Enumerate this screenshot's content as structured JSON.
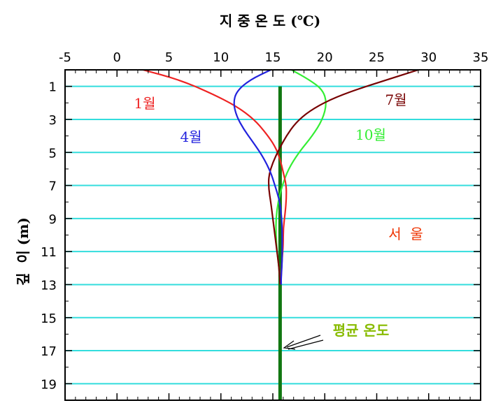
{
  "chart_data": {
    "type": "line",
    "title": "지 중 온 도 (℃)",
    "xlabel": "지 중 온 도 (℃)",
    "ylabel": "깊  이 (m)",
    "xlim": [
      -5,
      35
    ],
    "ylim": [
      0,
      20
    ],
    "x_ticks": [
      "-5",
      "0",
      "5",
      "10",
      "15",
      "20",
      "25",
      "30",
      "35"
    ],
    "y_ticks": [
      "1",
      "3",
      "5",
      "7",
      "9",
      "11",
      "13",
      "15",
      "17",
      "19"
    ],
    "grid": "horizontal",
    "location_label": "서  울",
    "annotation": "평균 온도",
    "colors": {
      "grid": "#33dddd",
      "jan": "#ee2222",
      "apr": "#2222dd",
      "jul": "#770000",
      "oct": "#33ee33",
      "mean": "#117711",
      "annotation": "#88bb00",
      "location": "#ee3300"
    },
    "series": [
      {
        "name": "1월",
        "points": [
          [
            2.5,
            0
          ],
          [
            6,
            0.6
          ],
          [
            9,
            1.4
          ],
          [
            11.5,
            2.2
          ],
          [
            13.2,
            3.0
          ],
          [
            14.3,
            3.8
          ],
          [
            15.2,
            4.6
          ],
          [
            15.7,
            5.4
          ],
          [
            16.0,
            6.2
          ],
          [
            16.3,
            7.0
          ],
          [
            16.3,
            7.8
          ],
          [
            16.2,
            8.6
          ],
          [
            16.0,
            9.6
          ],
          [
            16.0,
            10.6
          ],
          [
            15.9,
            11.4
          ],
          [
            15.8,
            12.4
          ],
          [
            15.8,
            13.0
          ]
        ]
      },
      {
        "name": "4월",
        "points": [
          [
            14.8,
            0
          ],
          [
            12.8,
            0.6
          ],
          [
            11.5,
            1.3
          ],
          [
            11.2,
            2.0
          ],
          [
            11.5,
            2.8
          ],
          [
            12.2,
            3.6
          ],
          [
            13.0,
            4.3
          ],
          [
            14.0,
            5.2
          ],
          [
            14.8,
            6.2
          ],
          [
            15.2,
            7.0
          ],
          [
            15.6,
            7.8
          ],
          [
            15.8,
            8.6
          ],
          [
            15.9,
            9.6
          ],
          [
            15.9,
            10.6
          ],
          [
            15.9,
            11.6
          ],
          [
            15.8,
            12.6
          ],
          [
            15.8,
            13.0
          ]
        ]
      },
      {
        "name": "7월",
        "points": [
          [
            29,
            0
          ],
          [
            26,
            0.6
          ],
          [
            23,
            1.2
          ],
          [
            20.5,
            1.8
          ],
          [
            18.5,
            2.5
          ],
          [
            17.2,
            3.2
          ],
          [
            16.3,
            4.0
          ],
          [
            15.6,
            4.8
          ],
          [
            15.0,
            5.6
          ],
          [
            14.6,
            6.4
          ],
          [
            14.6,
            7.2
          ],
          [
            14.8,
            8.0
          ],
          [
            15.0,
            9.0
          ],
          [
            15.2,
            10.0
          ],
          [
            15.4,
            11.0
          ],
          [
            15.6,
            12.0
          ],
          [
            15.7,
            13.0
          ]
        ]
      },
      {
        "name": "10월",
        "points": [
          [
            16.8,
            0
          ],
          [
            18.5,
            0.6
          ],
          [
            19.8,
            1.2
          ],
          [
            20.2,
            2.0
          ],
          [
            19.8,
            3.0
          ],
          [
            18.8,
            4.0
          ],
          [
            17.5,
            5.0
          ],
          [
            16.5,
            6.0
          ],
          [
            15.9,
            7.0
          ],
          [
            15.5,
            8.0
          ],
          [
            15.3,
            9.0
          ],
          [
            15.3,
            10.0
          ],
          [
            15.4,
            11.0
          ],
          [
            15.6,
            12.0
          ],
          [
            15.7,
            13.0
          ]
        ]
      },
      {
        "name": "평균 온도",
        "points": [
          [
            15.7,
            1
          ],
          [
            15.7,
            20
          ]
        ]
      }
    ]
  }
}
